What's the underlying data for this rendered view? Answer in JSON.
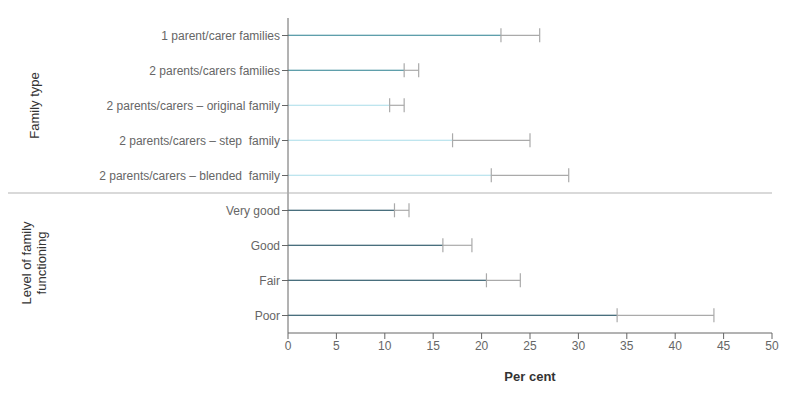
{
  "chart_data": {
    "type": "bar",
    "orientation": "horizontal",
    "xlabel": "Per cent",
    "categories": [
      "1 parent/carer families",
      "2 parents/carers families",
      "2 parents/carers – original family",
      "2 parents/carers – step  family",
      "2 parents/carers – blended  family",
      "Very good",
      "Good",
      "Fair",
      "Poor"
    ],
    "values": [
      22.0,
      12.0,
      10.5,
      17.0,
      21.0,
      11.0,
      16.0,
      20.5,
      34.0
    ],
    "errors_high": [
      26.0,
      13.5,
      12.0,
      25.0,
      29.0,
      12.5,
      19.0,
      24.0,
      44.0
    ],
    "colors": [
      "#2a7f8f",
      "#2a7f8f",
      "#a8dce9",
      "#a8dce9",
      "#a8dce9",
      "#0d3f52",
      "#0d3f52",
      "#0d3f52",
      "#0d3f52"
    ],
    "xlim": [
      0,
      50
    ],
    "xticks": [
      0,
      5,
      10,
      15,
      20,
      25,
      30,
      35,
      40,
      45,
      50
    ],
    "grid": false,
    "groups": [
      {
        "label": "Family type",
        "indices": [
          0,
          1,
          2,
          3,
          4
        ]
      },
      {
        "label": "Level of family\nfunctioning",
        "indices": [
          5,
          6,
          7,
          8
        ]
      }
    ]
  }
}
